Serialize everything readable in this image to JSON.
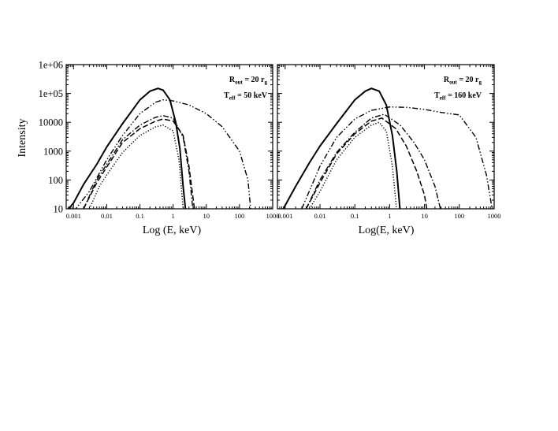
{
  "chart_data": [
    {
      "type": "line",
      "panel": "left",
      "xscale": "log",
      "yscale": "log",
      "xlim": [
        0.0006,
        1000
      ],
      "ylim": [
        10,
        1000000
      ],
      "xlabel": "Log (E, keV)",
      "ylabel": "Intensity",
      "x_tick_labels": [
        "0.001",
        "0.01",
        "0.1",
        "1",
        "10",
        "100",
        "1000"
      ],
      "y_tick_labels": [
        "10",
        "100",
        "1000",
        "10000",
        "1e+05",
        "1e+06"
      ],
      "annotation": {
        "r_main": "R",
        "r_sub": "out",
        "r_rest": " = 20 r",
        "r_tail": "g",
        "t_main": "T",
        "t_sub": "eff",
        "t_rest": " = 50 keV"
      },
      "series": [
        {
          "style": "solid",
          "x": [
            0.0006,
            0.001,
            0.002,
            0.005,
            0.01,
            0.03,
            0.1,
            0.2,
            0.35,
            0.5,
            0.8,
            1.2,
            1.6,
            2.0,
            2.5
          ],
          "y": [
            8,
            16,
            70,
            350,
            1400,
            9000,
            60000,
            120000,
            150000,
            130000,
            60000,
            10000,
            1200,
            60,
            5
          ]
        },
        {
          "style": "dash-dot-dot",
          "x": [
            0.001,
            0.003,
            0.01,
            0.03,
            0.1,
            0.3,
            0.5,
            1,
            3,
            10,
            30,
            100,
            180,
            220
          ],
          "y": [
            8,
            40,
            500,
            3500,
            20000,
            50000,
            60000,
            55000,
            40000,
            20000,
            7000,
            1000,
            100,
            8
          ]
        },
        {
          "style": "dash-dot",
          "x": [
            0.002,
            0.005,
            0.01,
            0.03,
            0.1,
            0.3,
            0.5,
            1,
            2,
            3,
            4
          ],
          "y": [
            10,
            100,
            350,
            2500,
            8000,
            15000,
            17000,
            14000,
            3000,
            200,
            8
          ]
        },
        {
          "style": "dashed",
          "x": [
            0.002,
            0.005,
            0.01,
            0.03,
            0.1,
            0.3,
            0.5,
            1,
            2,
            3,
            4.5
          ],
          "y": [
            10,
            80,
            280,
            2000,
            6000,
            11000,
            13000,
            11000,
            3500,
            300,
            8
          ]
        },
        {
          "style": "dotted",
          "x": [
            0.003,
            0.006,
            0.01,
            0.03,
            0.1,
            0.3,
            0.5,
            1,
            1.5,
            2
          ],
          "y": [
            10,
            60,
            150,
            900,
            3500,
            7000,
            8000,
            5000,
            500,
            10
          ]
        }
      ]
    },
    {
      "type": "line",
      "panel": "right",
      "xscale": "log",
      "yscale": "log",
      "xlim": [
        0.0006,
        1000
      ],
      "ylim": [
        10,
        1000000
      ],
      "xlabel": "Log(E, keV)",
      "ylabel": "",
      "x_tick_labels": [
        "0.001",
        "0.01",
        "0.1",
        "1",
        "10",
        "100",
        "1000"
      ],
      "y_tick_labels": [],
      "annotation": {
        "r_main": "R",
        "r_sub": "out",
        "r_rest": " = 20 r",
        "r_tail": "g",
        "t_main": "T",
        "t_sub": "eff",
        "t_rest": " = 160 keV"
      },
      "series": [
        {
          "style": "solid",
          "x": [
            0.0008,
            0.002,
            0.005,
            0.01,
            0.03,
            0.1,
            0.2,
            0.3,
            0.5,
            0.8,
            1.2,
            1.6,
            2.0
          ],
          "y": [
            8,
            60,
            400,
            1500,
            9000,
            60000,
            120000,
            150000,
            120000,
            40000,
            3500,
            200,
            8
          ]
        },
        {
          "style": "dash-dot-dot",
          "x": [
            0.003,
            0.01,
            0.03,
            0.1,
            0.3,
            1,
            3,
            10,
            30,
            100,
            300,
            600,
            900
          ],
          "y": [
            10,
            300,
            3000,
            13000,
            26000,
            34000,
            33000,
            28000,
            22000,
            18000,
            3000,
            150,
            8
          ]
        },
        {
          "style": "dash-dot",
          "x": [
            0.004,
            0.01,
            0.03,
            0.1,
            0.3,
            0.7,
            2,
            5,
            10,
            20,
            30
          ],
          "y": [
            10,
            100,
            900,
            4500,
            14000,
            19000,
            8000,
            2000,
            500,
            60,
            8
          ]
        },
        {
          "style": "dashed",
          "x": [
            0.004,
            0.01,
            0.03,
            0.1,
            0.3,
            0.6,
            1.5,
            3,
            6,
            10,
            12
          ],
          "y": [
            10,
            80,
            800,
            4000,
            11000,
            14000,
            6000,
            1500,
            200,
            30,
            8
          ]
        },
        {
          "style": "dotted",
          "x": [
            0.005,
            0.01,
            0.03,
            0.1,
            0.3,
            0.5,
            0.8,
            1.2,
            1.6
          ],
          "y": [
            10,
            40,
            500,
            3000,
            8000,
            10000,
            5000,
            300,
            8
          ]
        }
      ]
    }
  ]
}
